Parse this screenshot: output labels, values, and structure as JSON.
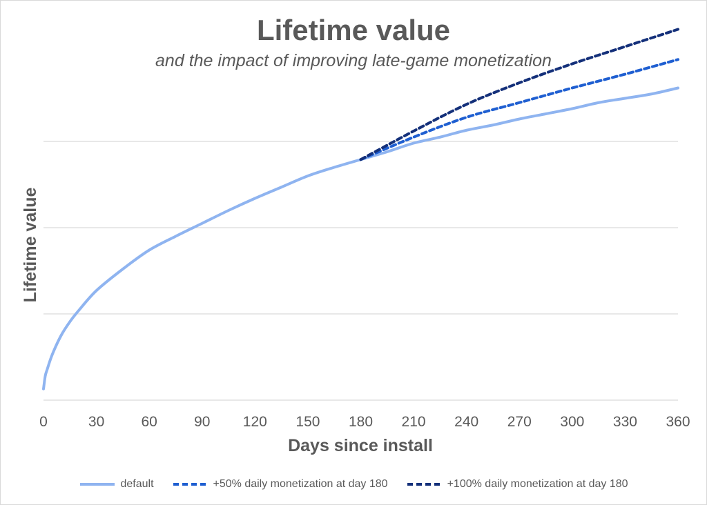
{
  "chart_data": {
    "type": "line",
    "title": "Lifetime value",
    "subtitle": "and the impact of improving late-game monetization",
    "xlabel": "Days since install",
    "ylabel": "Lifetime value",
    "xlim": [
      0,
      360
    ],
    "ylim": [
      0,
      4
    ],
    "x_ticks": [
      0,
      30,
      60,
      90,
      120,
      150,
      180,
      210,
      240,
      270,
      300,
      330,
      360
    ],
    "y_gridlines": [
      0,
      1,
      2,
      3
    ],
    "y_tick_labels_shown": false,
    "grid": "horizontal",
    "legend_position": "bottom",
    "series": [
      {
        "name": "default",
        "style": "solid",
        "color": "#8fb4f0",
        "x": [
          0,
          1,
          2,
          5,
          10,
          15,
          20,
          30,
          45,
          60,
          75,
          90,
          105,
          120,
          135,
          150,
          165,
          180,
          195,
          210,
          225,
          240,
          255,
          270,
          285,
          300,
          315,
          330,
          345,
          360
        ],
        "y": [
          0.13,
          0.28,
          0.35,
          0.53,
          0.75,
          0.91,
          1.04,
          1.27,
          1.52,
          1.74,
          1.9,
          2.05,
          2.2,
          2.34,
          2.47,
          2.6,
          2.7,
          2.79,
          2.88,
          2.98,
          3.05,
          3.13,
          3.19,
          3.26,
          3.32,
          3.38,
          3.45,
          3.5,
          3.55,
          3.62
        ]
      },
      {
        "name": "+50% daily monetization at day 180",
        "style": "dashed",
        "color": "#1f5fd1",
        "x": [
          180,
          210,
          240,
          270,
          300,
          330,
          360
        ],
        "y": [
          2.79,
          3.05,
          3.28,
          3.45,
          3.62,
          3.78,
          3.95
        ]
      },
      {
        "name": "+100% daily monetization at day 180",
        "style": "dashed",
        "color": "#14307a",
        "x": [
          180,
          210,
          240,
          270,
          300,
          330,
          360
        ],
        "y": [
          2.79,
          3.12,
          3.43,
          3.68,
          3.9,
          4.1,
          4.3
        ]
      }
    ]
  }
}
